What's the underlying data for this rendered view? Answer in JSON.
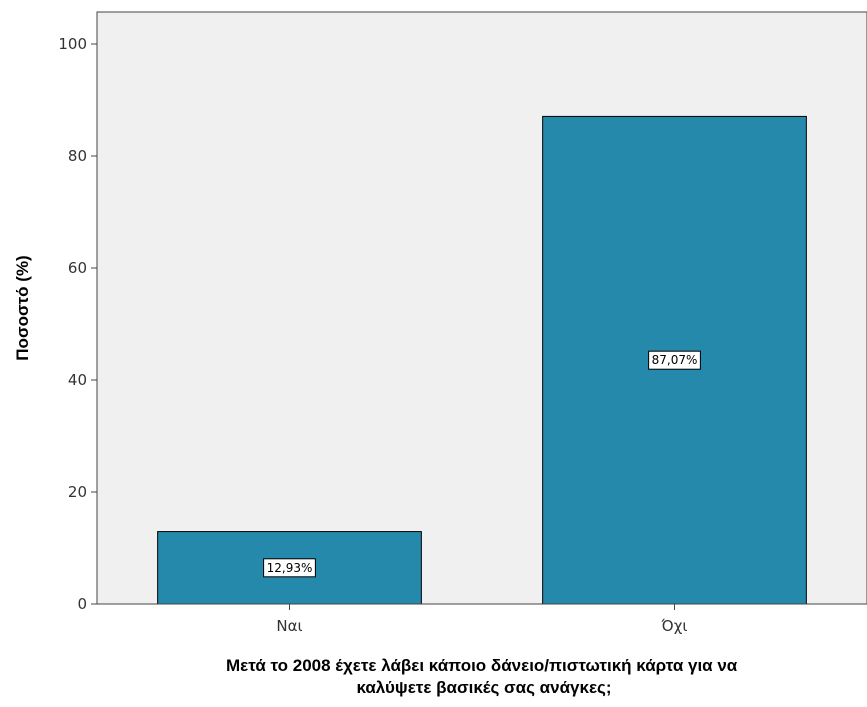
{
  "chart_data": {
    "type": "bar",
    "categories": [
      "Ναι",
      "Όχι"
    ],
    "values": [
      12.93,
      87.07
    ],
    "data_labels": [
      "12,93%",
      "87,07%"
    ],
    "title": "",
    "xlabel_lines": [
      "Μετά το 2008 έχετε λάβει κάποιο δάνειο/πιστωτική κάρτα για να",
      "καλύψετε βασικές σας ανάγκες;"
    ],
    "ylabel": "Ποσοστό (%)",
    "ylim": [
      0,
      100
    ],
    "yticks": [
      0,
      20,
      40,
      60,
      80,
      100
    ],
    "grid": false,
    "colors": {
      "plot_background": "#f0f0f0",
      "bar_fill": "#2589ab",
      "bar_stroke": "#000000",
      "axis": "#444444"
    }
  }
}
